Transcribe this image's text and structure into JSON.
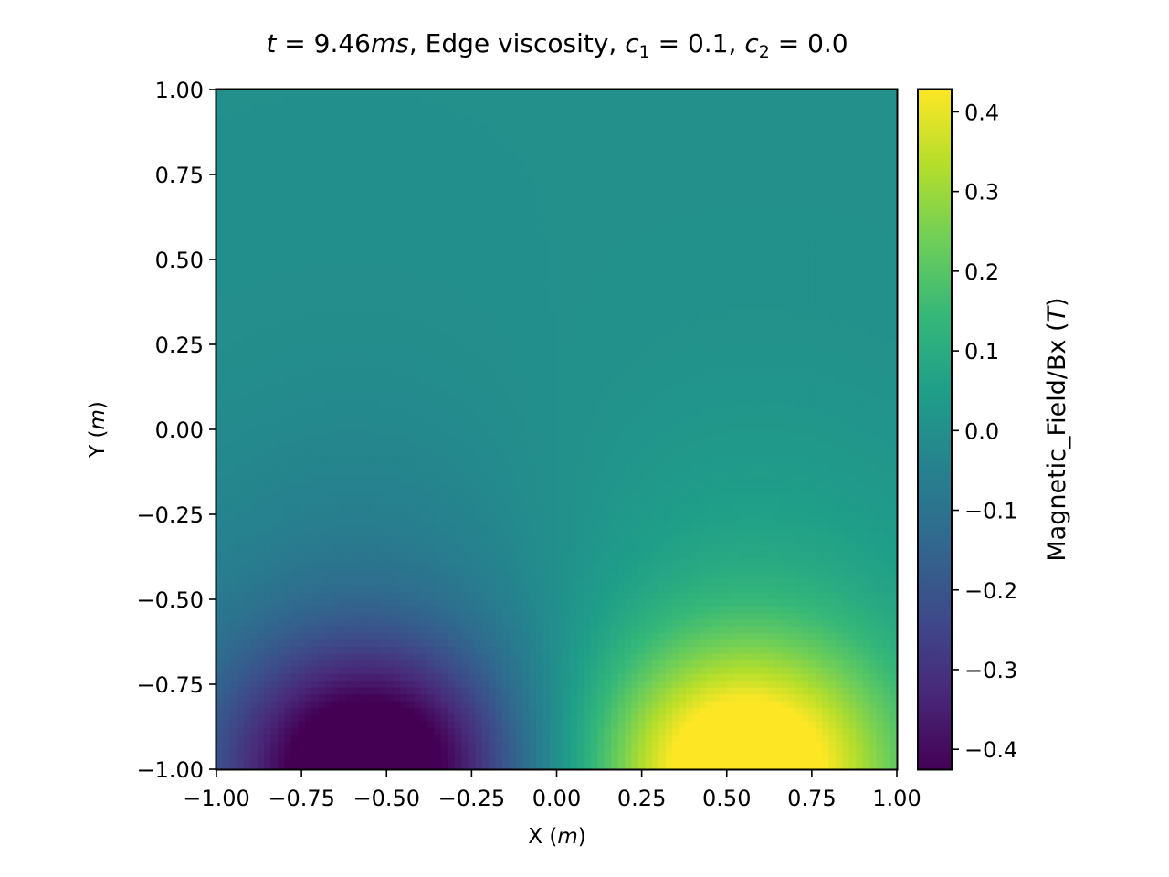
{
  "chart_data": {
    "type": "heatmap",
    "title_parts": [
      "t",
      " = 9.46",
      "ms",
      ", Edge viscosity, ",
      "c",
      "1",
      " = 0.1, ",
      "c",
      "2",
      " = 0.0"
    ],
    "xlabel": [
      "X (",
      "m",
      ")"
    ],
    "ylabel": [
      "Y (",
      "m",
      ")"
    ],
    "colorbar_label": [
      "Magnetic_Field/Bx (",
      "T",
      ")"
    ],
    "xlim": [
      -1.0,
      1.0
    ],
    "ylim": [
      -1.0,
      1.0
    ],
    "x_ticks": [
      -1.0,
      -0.75,
      -0.5,
      -0.25,
      0.0,
      0.25,
      0.5,
      0.75,
      1.0
    ],
    "x_tick_labels": [
      "−1.00",
      "−0.75",
      "−0.50",
      "−0.25",
      "0.00",
      "0.25",
      "0.50",
      "0.75",
      "1.00"
    ],
    "y_ticks": [
      -1.0,
      -0.75,
      -0.5,
      -0.25,
      0.0,
      0.25,
      0.5,
      0.75,
      1.0
    ],
    "y_tick_labels": [
      "−1.00",
      "−0.75",
      "−0.50",
      "−0.25",
      "0.00",
      "0.25",
      "0.50",
      "0.75",
      "1.00"
    ],
    "colorbar_range": [
      -0.425,
      0.428
    ],
    "colorbar_ticks": [
      -0.4,
      -0.3,
      -0.2,
      -0.1,
      0.0,
      0.1,
      0.2,
      0.3,
      0.4
    ],
    "colorbar_tick_labels": [
      "−0.4",
      "−0.3",
      "−0.2",
      "−0.1",
      "0.0",
      "0.1",
      "0.2",
      "0.3",
      "0.4"
    ],
    "colormap": "viridis",
    "field_features": [
      {
        "x": -0.55,
        "y": -1.0,
        "value": -0.42
      },
      {
        "x": 0.55,
        "y": -1.0,
        "value": 0.42
      }
    ],
    "background_value": 0.0
  }
}
